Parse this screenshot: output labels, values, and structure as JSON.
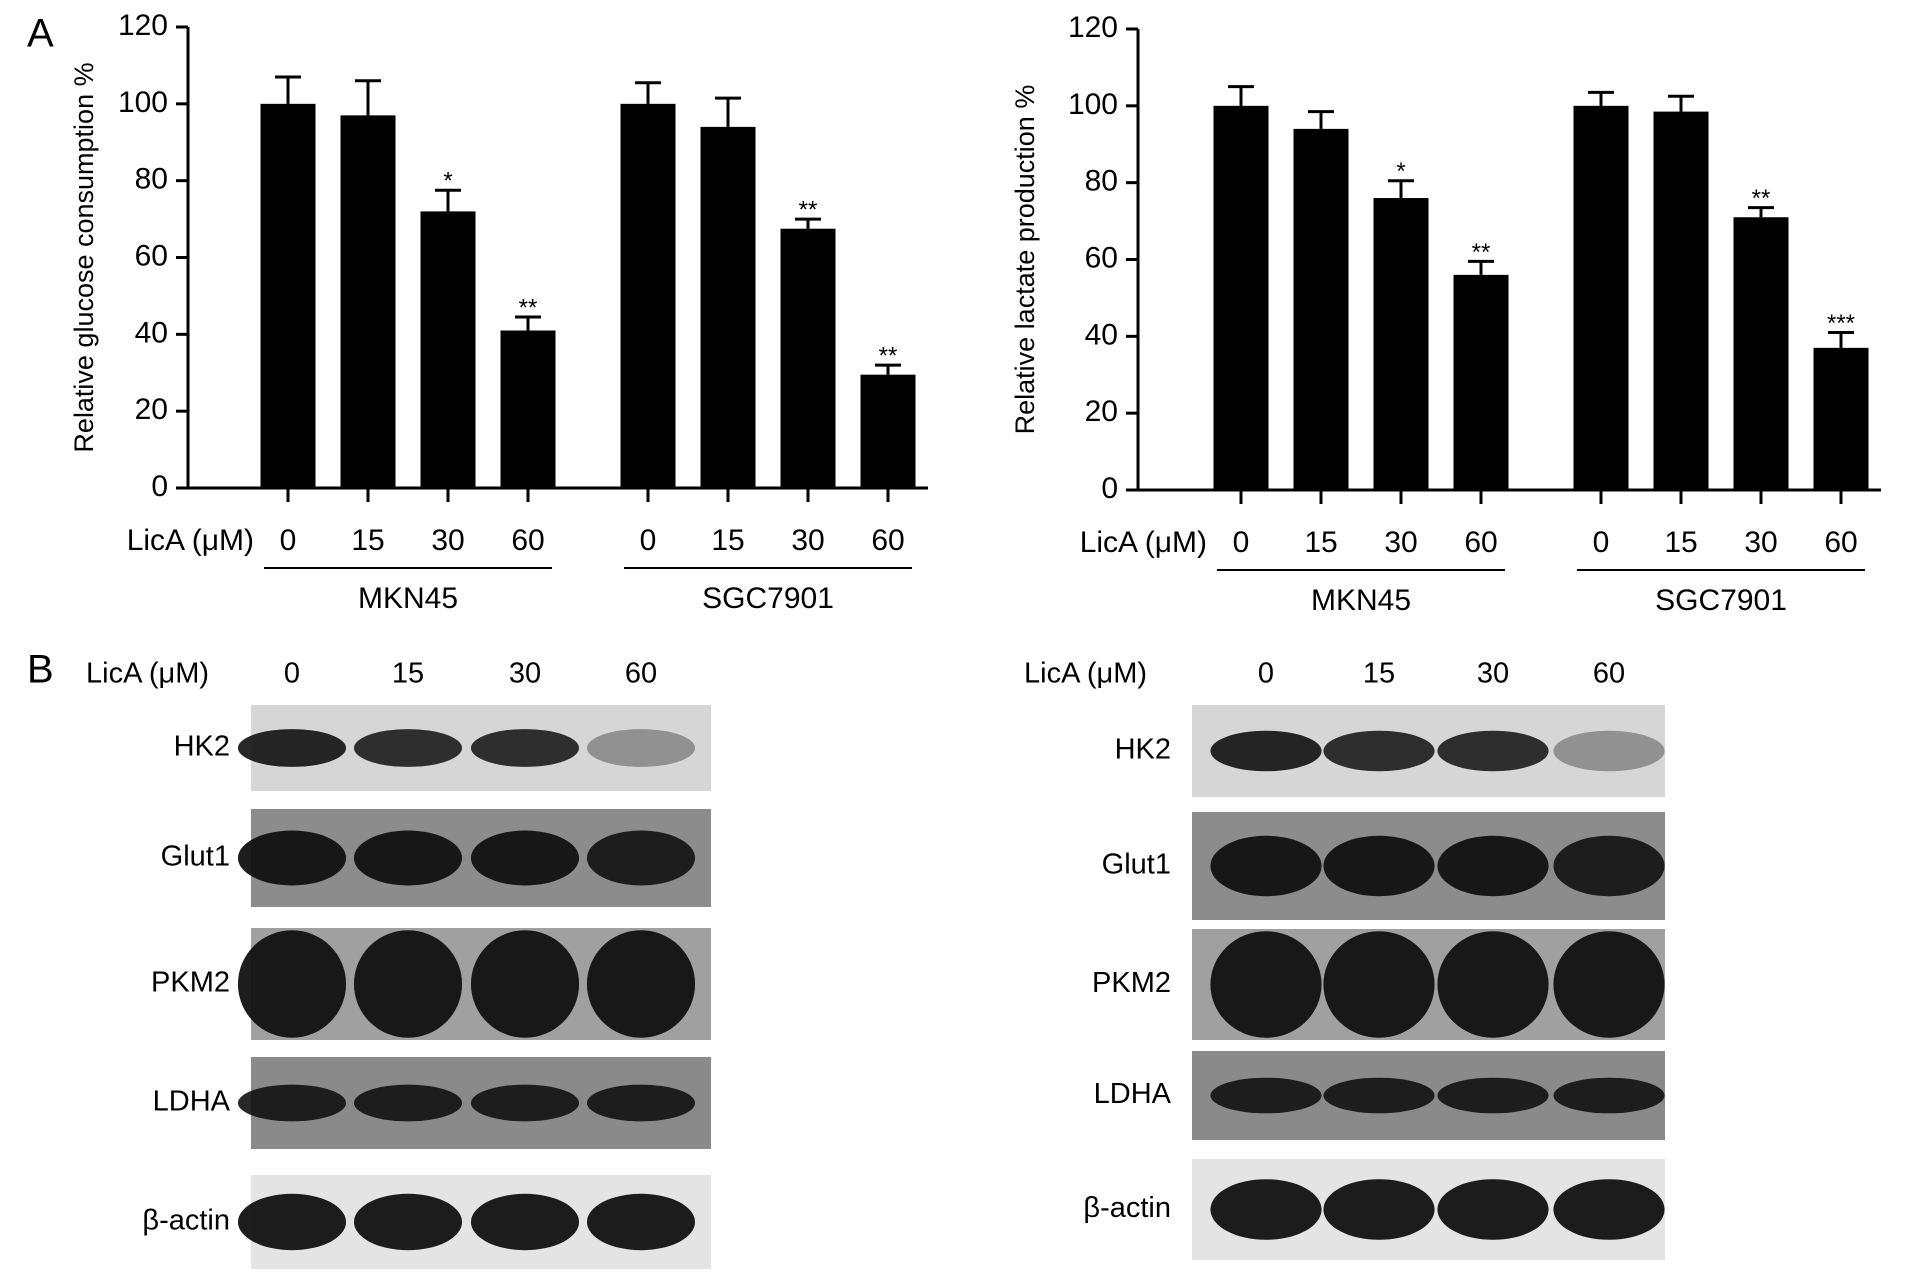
{
  "panels": [
    "A",
    "B"
  ],
  "chart_data": [
    {
      "type": "bar",
      "y_label": "Relative glucose consumption %",
      "x_prefix": "LicA (μM)",
      "categories": [
        "0",
        "15",
        "30",
        "60",
        "0",
        "15",
        "30",
        "60"
      ],
      "groups": [
        "MKN45",
        "SGC7901"
      ],
      "values": [
        100,
        97,
        72,
        41,
        100,
        94,
        67.5,
        29.5
      ],
      "errors": [
        7,
        9,
        5.5,
        3.5,
        5.5,
        7.5,
        2.5,
        2.5
      ],
      "significance": [
        null,
        null,
        "*",
        "**",
        null,
        null,
        "**",
        "**"
      ],
      "color": "#000000",
      "ylim": [
        0,
        120
      ],
      "yticks": [
        0,
        20,
        40,
        60,
        80,
        100,
        120
      ]
    },
    {
      "type": "bar",
      "y_label": "Relative lactate production %",
      "x_prefix": "LicA (μM)",
      "categories": [
        "0",
        "15",
        "30",
        "60",
        "0",
        "15",
        "30",
        "60"
      ],
      "groups": [
        "MKN45",
        "SGC7901"
      ],
      "values": [
        100,
        94,
        76,
        56,
        100,
        98.5,
        71,
        37
      ],
      "errors": [
        5,
        4.5,
        4.5,
        3.5,
        3.5,
        4,
        2.5,
        4
      ],
      "significance": [
        null,
        null,
        "*",
        "**",
        null,
        null,
        "**",
        "***"
      ],
      "color": "#000000",
      "ylim": [
        0,
        120
      ],
      "yticks": [
        0,
        20,
        40,
        60,
        80,
        100,
        120
      ]
    }
  ],
  "blots": [
    {
      "treatment_label": "LicA (μM)",
      "lanes": [
        "0",
        "15",
        "30",
        "60"
      ],
      "rows": [
        "HK2",
        "Glut1",
        "PKM2",
        "LDHA",
        "β-actin"
      ]
    },
    {
      "treatment_label": "LicA (μM)",
      "lanes": [
        "0",
        "15",
        "30",
        "60"
      ],
      "rows": [
        "HK2",
        "Glut1",
        "PKM2",
        "LDHA",
        "β-actin"
      ]
    }
  ]
}
